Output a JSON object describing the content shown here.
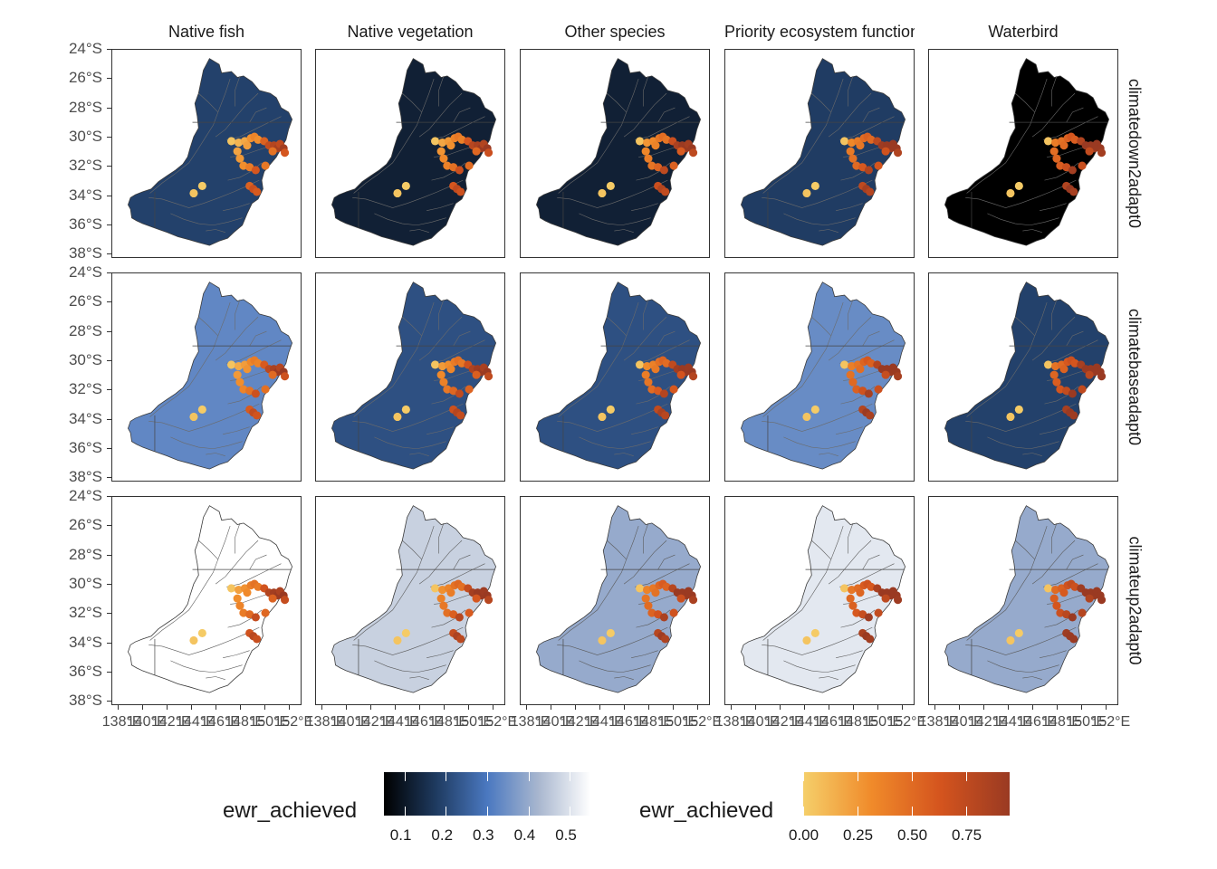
{
  "facet_columns": [
    "Native fish",
    "Native vegetation",
    "Other species",
    "Priority ecosystem function",
    "Waterbird"
  ],
  "facet_rows": [
    "climatedown2adapt0",
    "climatebaseadapt0",
    "climateup2adapt0"
  ],
  "y_axis_ticks": [
    "24°S",
    "26°S",
    "28°S",
    "30°S",
    "32°S",
    "34°S",
    "36°S",
    "38°S"
  ],
  "x_axis_ticks": [
    "138°E",
    "140°E",
    "142°E",
    "144°E",
    "146°E",
    "148°E",
    "150°E",
    "152°E"
  ],
  "legend_fill": {
    "title": "ewr_achieved",
    "labels": [
      "0.1",
      "0.2",
      "0.3",
      "0.4",
      "0.5"
    ],
    "colors": [
      "#000000",
      "#1e3a5f",
      "#4a78c0",
      "#a9b7cf",
      "#ffffff"
    ],
    "range": [
      0.05,
      0.55
    ]
  },
  "legend_points": {
    "title": "ewr_achieved",
    "labels": [
      "0.00",
      "0.25",
      "0.50",
      "0.75"
    ],
    "colors": [
      "#f5cf6a",
      "#f08a2a",
      "#d4541e",
      "#9a3a22"
    ],
    "range": [
      0.0,
      0.95
    ]
  },
  "chart_data": {
    "type": "map",
    "x_range": [
      137.5,
      153.0
    ],
    "y_range": [
      -38.3,
      -24.0
    ],
    "grid": false,
    "legend_position": "bottom",
    "panel_fill_values": [
      [
        0.19,
        0.12,
        0.12,
        0.18,
        0.05
      ],
      [
        0.33,
        0.22,
        0.22,
        0.34,
        0.19
      ],
      [
        0.55,
        0.47,
        0.4,
        0.51,
        0.4
      ]
    ],
    "points": [
      {
        "lon": 147.3,
        "lat": -30.3,
        "v": 0.05
      },
      {
        "lon": 147.9,
        "lat": -30.4,
        "v": 0.12
      },
      {
        "lon": 148.4,
        "lat": -30.3,
        "v": 0.18
      },
      {
        "lon": 148.9,
        "lat": -30.1,
        "v": 0.28
      },
      {
        "lon": 149.2,
        "lat": -30.0,
        "v": 0.35
      },
      {
        "lon": 148.6,
        "lat": -30.6,
        "v": 0.22
      },
      {
        "lon": 149.5,
        "lat": -30.2,
        "v": 0.3
      },
      {
        "lon": 150.0,
        "lat": -30.3,
        "v": 0.55
      },
      {
        "lon": 150.4,
        "lat": -30.6,
        "v": 0.72
      },
      {
        "lon": 150.8,
        "lat": -30.6,
        "v": 0.8
      },
      {
        "lon": 151.1,
        "lat": -30.8,
        "v": 0.88
      },
      {
        "lon": 151.3,
        "lat": -30.5,
        "v": 0.75
      },
      {
        "lon": 151.6,
        "lat": -30.8,
        "v": 0.9
      },
      {
        "lon": 151.7,
        "lat": -31.1,
        "v": 0.62
      },
      {
        "lon": 150.7,
        "lat": -31.0,
        "v": 0.45
      },
      {
        "lon": 147.8,
        "lat": -31.0,
        "v": 0.2
      },
      {
        "lon": 148.0,
        "lat": -31.5,
        "v": 0.25
      },
      {
        "lon": 148.3,
        "lat": -32.0,
        "v": 0.3
      },
      {
        "lon": 148.8,
        "lat": -32.1,
        "v": 0.4
      },
      {
        "lon": 149.3,
        "lat": -32.3,
        "v": 0.62
      },
      {
        "lon": 150.1,
        "lat": -32.0,
        "v": 0.42
      },
      {
        "lon": 148.8,
        "lat": -33.4,
        "v": 0.55
      },
      {
        "lon": 149.1,
        "lat": -33.6,
        "v": 0.68
      },
      {
        "lon": 149.4,
        "lat": -33.8,
        "v": 0.6
      },
      {
        "lon": 144.9,
        "lat": -33.4,
        "v": 0.02
      },
      {
        "lon": 144.2,
        "lat": -33.9,
        "v": 0.05
      }
    ]
  }
}
